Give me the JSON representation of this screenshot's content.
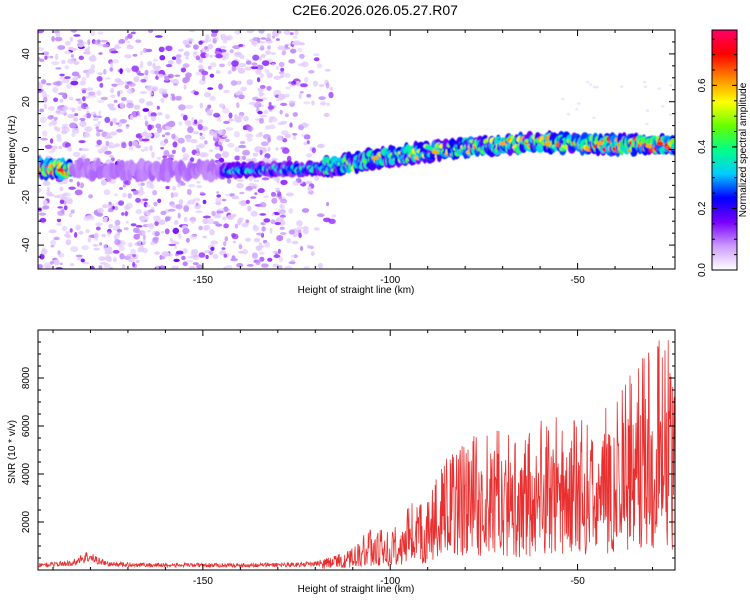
{
  "figure_title": "C2E6.2026.026.05.27.R07",
  "chart_data": [
    {
      "type": "heatmap",
      "title": "",
      "xlabel": "Height of straight line (km)",
      "ylabel": "Frequency (Hz)",
      "xlim": [
        -194,
        -24
      ],
      "ylim": [
        -50,
        50
      ],
      "xticks": [
        -150,
        -100,
        -50
      ],
      "yticks": [
        -40,
        -20,
        0,
        20,
        40
      ],
      "trend_line": {
        "x": [
          -194,
          -150,
          -120,
          -100,
          -80,
          -60,
          -40,
          -26
        ],
        "y": [
          -8,
          -9,
          -8,
          -3,
          1,
          3,
          2,
          2
        ]
      },
      "noise_region_x": [
        -194,
        -120
      ],
      "colorbar": {
        "label": "Normalized spectral amplitude",
        "range": [
          0.0,
          0.78
        ],
        "ticks": [
          0.0,
          0.2,
          0.4,
          0.6
        ],
        "tick_labels": [
          "0.0",
          "0.2",
          "0.4",
          "0.6"
        ],
        "colors": [
          "#ffffff",
          "#cc99ff",
          "#7700ff",
          "#0000ff",
          "#00ccff",
          "#00ff88",
          "#66ff00",
          "#ffff00",
          "#ff8800",
          "#ff0000",
          "#ff0066"
        ]
      }
    },
    {
      "type": "line",
      "title": "",
      "xlabel": "Height of straight line (km)",
      "ylabel": "SNR (10 * v/v)",
      "xlim": [
        -194,
        -24
      ],
      "ylim": [
        0,
        10000
      ],
      "xticks": [
        -150,
        -100,
        -50
      ],
      "yticks": [
        2000,
        4000,
        6000,
        8000
      ],
      "line_color": "#e83030",
      "series": [
        {
          "name": "SNR",
          "envelope": {
            "x": [
              -194,
              -185,
              -181,
              -175,
              -160,
              -140,
              -120,
              -110,
              -105,
              -100,
              -95,
              -90,
              -85,
              -80,
              -75,
              -70,
              -65,
              -60,
              -55,
              -50,
              -45,
              -40,
              -35,
              -30,
              -26,
              -24
            ],
            "y": [
              250,
              350,
              700,
              300,
              250,
              250,
              300,
              900,
              1800,
              1500,
              2700,
              3000,
              4600,
              5300,
              6000,
              5800,
              5100,
              6300,
              6300,
              6500,
              6500,
              7200,
              8600,
              9000,
              10000,
              7000
            ]
          }
        }
      ]
    }
  ]
}
